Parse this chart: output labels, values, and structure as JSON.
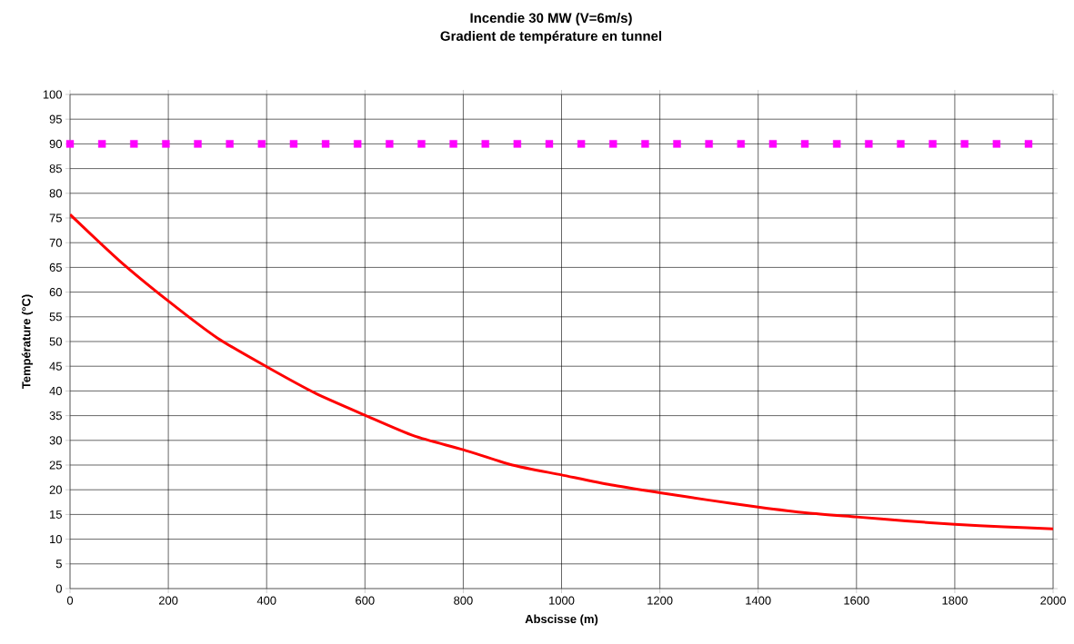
{
  "chart_data": {
    "type": "line",
    "title": "Incendie 30 MW (V=6m/s)",
    "subtitle": "Gradient de température en tunnel",
    "xlabel": "Abscisse (m)",
    "ylabel": "Température (°C)",
    "xlim": [
      0,
      2000
    ],
    "ylim": [
      0,
      100
    ],
    "xticks": [
      0,
      200,
      400,
      600,
      800,
      1000,
      1200,
      1400,
      1600,
      1800,
      2000
    ],
    "yticks": [
      0,
      5,
      10,
      15,
      20,
      25,
      30,
      35,
      40,
      45,
      50,
      55,
      60,
      65,
      70,
      75,
      80,
      85,
      90,
      95,
      100
    ],
    "grid": true,
    "line_style": "solid",
    "series": [
      {
        "color": "#ff0000",
        "marker": "none",
        "x": [
          0,
          100,
          200,
          300,
          400,
          500,
          600,
          700,
          800,
          900,
          1000,
          1100,
          1200,
          1300,
          1400,
          1500,
          1600,
          1700,
          1800,
          1900,
          2000
        ],
        "values": [
          75.7,
          66.4,
          58.2,
          50.7,
          44.9,
          39.5,
          35.1,
          30.9,
          28.1,
          25,
          23,
          21,
          19.4,
          17.9,
          16.5,
          15.3,
          14.5,
          13.7,
          13,
          12.5,
          12.1
        ]
      },
      {
        "type": "scatter",
        "color": "#ff00ff",
        "marker": "square",
        "x": [
          0,
          65,
          130,
          195,
          260,
          325,
          390,
          455,
          520,
          585,
          650,
          715,
          780,
          845,
          910,
          975,
          1040,
          1105,
          1170,
          1235,
          1300,
          1365,
          1430,
          1495,
          1560,
          1625,
          1690,
          1755,
          1820,
          1885,
          1950
        ],
        "values": [
          90,
          90,
          90,
          90,
          90,
          90,
          90,
          90,
          90,
          90,
          90,
          90,
          90,
          90,
          90,
          90,
          90,
          90,
          90,
          90,
          90,
          90,
          90,
          90,
          90,
          90,
          90,
          90,
          90,
          90,
          90
        ]
      }
    ]
  }
}
